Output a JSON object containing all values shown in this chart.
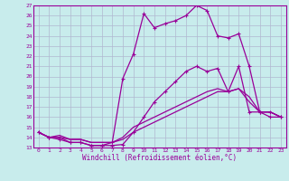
{
  "xlabel": "Windchill (Refroidissement éolien,°C)",
  "bg_color": "#c8ecec",
  "grid_color": "#b0b8d0",
  "line_color": "#990099",
  "xlim": [
    -0.5,
    23.5
  ],
  "ylim": [
    13,
    27
  ],
  "xticks": [
    0,
    1,
    2,
    3,
    4,
    5,
    6,
    7,
    8,
    9,
    10,
    11,
    12,
    13,
    14,
    15,
    16,
    17,
    18,
    19,
    20,
    21,
    22,
    23
  ],
  "yticks": [
    13,
    14,
    15,
    16,
    17,
    18,
    19,
    20,
    21,
    22,
    23,
    24,
    25,
    26,
    27
  ],
  "line1_x": [
    0,
    1,
    2,
    3,
    4,
    5,
    6,
    7,
    8,
    9,
    10,
    11,
    12,
    13,
    14,
    15,
    16,
    17,
    18,
    19,
    20,
    21,
    22,
    23
  ],
  "line1_y": [
    14.5,
    14.0,
    14.0,
    13.5,
    13.5,
    13.2,
    13.2,
    13.2,
    13.3,
    14.5,
    16.0,
    17.5,
    18.5,
    19.5,
    20.5,
    21.0,
    20.5,
    20.8,
    18.5,
    21.0,
    16.5,
    16.5,
    16.0,
    16.0
  ],
  "line2_x": [
    0,
    1,
    2,
    3,
    4,
    5,
    6,
    7,
    8,
    9,
    10,
    11,
    12,
    13,
    14,
    15,
    16,
    17,
    18,
    19,
    20,
    21,
    22,
    23
  ],
  "line2_y": [
    14.5,
    14.0,
    13.8,
    13.5,
    13.5,
    13.2,
    13.2,
    13.5,
    19.8,
    22.2,
    26.2,
    24.8,
    25.2,
    25.5,
    26.0,
    27.0,
    26.5,
    24.0,
    23.8,
    24.2,
    21.0,
    16.5,
    16.5,
    16.0
  ],
  "line3_x": [
    0,
    1,
    2,
    3,
    4,
    5,
    6,
    7,
    8,
    9,
    10,
    11,
    12,
    13,
    14,
    15,
    16,
    17,
    18,
    19,
    20,
    21,
    22,
    23
  ],
  "line3_y": [
    14.5,
    14.0,
    14.0,
    13.8,
    13.8,
    13.5,
    13.5,
    13.5,
    14.0,
    15.0,
    15.5,
    16.0,
    16.5,
    17.0,
    17.5,
    18.0,
    18.5,
    18.8,
    18.5,
    18.8,
    18.0,
    16.5,
    16.5,
    16.0
  ],
  "line4_x": [
    0,
    1,
    2,
    3,
    4,
    5,
    6,
    7,
    8,
    9,
    10,
    11,
    12,
    13,
    14,
    15,
    16,
    17,
    18,
    19,
    20,
    21,
    22,
    23
  ],
  "line4_y": [
    14.5,
    14.0,
    14.2,
    13.8,
    13.8,
    13.5,
    13.5,
    13.5,
    13.8,
    14.5,
    15.0,
    15.5,
    16.0,
    16.5,
    17.0,
    17.5,
    18.0,
    18.5,
    18.5,
    18.8,
    17.5,
    16.5,
    16.5,
    16.0
  ],
  "label_fontsize": 4.5,
  "xlabel_fontsize": 5.5
}
